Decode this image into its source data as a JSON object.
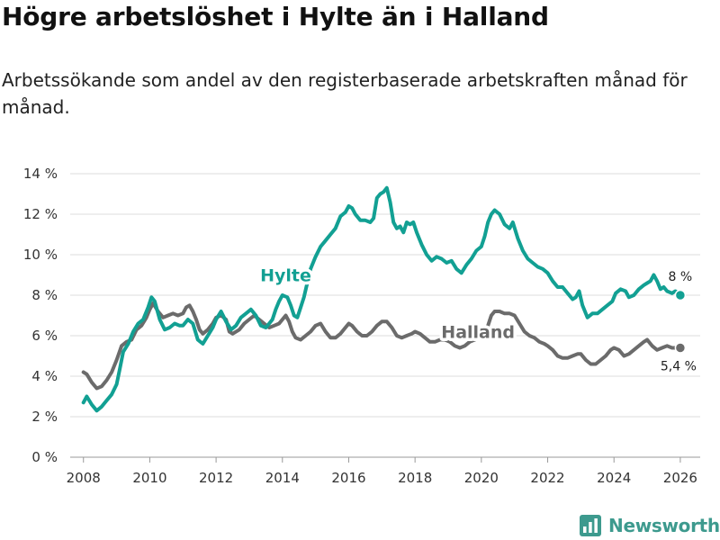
{
  "header": {
    "title": "Högre arbetslöshet i Hylte än i Halland",
    "subtitle": "Arbetssökande som andel av den registerbaserade arbetskraften månad för månad."
  },
  "brand": {
    "name": "Newsworthy"
  },
  "colors": {
    "hylte": "#12a093",
    "halland": "#6b6b6b",
    "grid": "#dddddd",
    "axis": "#999999",
    "brand": "#3d9a8e"
  },
  "chart_data": {
    "type": "line",
    "title": "Högre arbetslöshet i Hylte än i Halland",
    "subtitle": "Arbetssökande som andel av den registerbaserade arbetskraften månad för månad.",
    "xlabel": "",
    "ylabel": "",
    "xlim": [
      2007.6,
      2026.6
    ],
    "ylim": [
      0,
      14
    ],
    "xticks": [
      2008,
      2010,
      2012,
      2014,
      2016,
      2018,
      2020,
      2022,
      2024,
      2026
    ],
    "xtick_labels": [
      "2008",
      "2010",
      "2012",
      "2014",
      "2016",
      "2018",
      "2020",
      "2022",
      "2024",
      "2026"
    ],
    "yticks": [
      0,
      2,
      4,
      6,
      8,
      10,
      12,
      14
    ],
    "ytick_labels": [
      "0 %",
      "2 %",
      "4 %",
      "6 %",
      "8 %",
      "10 %",
      "12 %",
      "14 %"
    ],
    "grid": true,
    "series": [
      {
        "name": "Halland",
        "label": "Halland",
        "end_label": "5,4 %",
        "points": [
          [
            2008.0,
            4.2
          ],
          [
            2008.1,
            4.1
          ],
          [
            2008.25,
            3.7
          ],
          [
            2008.4,
            3.4
          ],
          [
            2008.55,
            3.5
          ],
          [
            2008.7,
            3.8
          ],
          [
            2008.85,
            4.2
          ],
          [
            2009.0,
            4.8
          ],
          [
            2009.15,
            5.5
          ],
          [
            2009.3,
            5.7
          ],
          [
            2009.45,
            5.8
          ],
          [
            2009.6,
            6.3
          ],
          [
            2009.75,
            6.5
          ],
          [
            2009.9,
            6.9
          ],
          [
            2010.0,
            7.3
          ],
          [
            2010.1,
            7.6
          ],
          [
            2010.25,
            7.2
          ],
          [
            2010.4,
            6.9
          ],
          [
            2010.55,
            7.0
          ],
          [
            2010.7,
            7.1
          ],
          [
            2010.85,
            7.0
          ],
          [
            2011.0,
            7.1
          ],
          [
            2011.1,
            7.4
          ],
          [
            2011.2,
            7.5
          ],
          [
            2011.3,
            7.2
          ],
          [
            2011.4,
            6.8
          ],
          [
            2011.5,
            6.3
          ],
          [
            2011.6,
            6.1
          ],
          [
            2011.75,
            6.3
          ],
          [
            2011.9,
            6.6
          ],
          [
            2012.0,
            6.9
          ],
          [
            2012.15,
            7.0
          ],
          [
            2012.3,
            6.8
          ],
          [
            2012.4,
            6.2
          ],
          [
            2012.5,
            6.1
          ],
          [
            2012.7,
            6.3
          ],
          [
            2012.85,
            6.6
          ],
          [
            2013.0,
            6.8
          ],
          [
            2013.15,
            7.0
          ],
          [
            2013.3,
            6.8
          ],
          [
            2013.45,
            6.6
          ],
          [
            2013.6,
            6.4
          ],
          [
            2013.75,
            6.5
          ],
          [
            2013.9,
            6.6
          ],
          [
            2014.0,
            6.8
          ],
          [
            2014.1,
            7.0
          ],
          [
            2014.2,
            6.7
          ],
          [
            2014.3,
            6.2
          ],
          [
            2014.4,
            5.9
          ],
          [
            2014.55,
            5.8
          ],
          [
            2014.7,
            6.0
          ],
          [
            2014.85,
            6.2
          ],
          [
            2015.0,
            6.5
          ],
          [
            2015.15,
            6.6
          ],
          [
            2015.3,
            6.2
          ],
          [
            2015.45,
            5.9
          ],
          [
            2015.6,
            5.9
          ],
          [
            2015.75,
            6.1
          ],
          [
            2015.9,
            6.4
          ],
          [
            2016.0,
            6.6
          ],
          [
            2016.1,
            6.5
          ],
          [
            2016.25,
            6.2
          ],
          [
            2016.4,
            6.0
          ],
          [
            2016.55,
            6.0
          ],
          [
            2016.7,
            6.2
          ],
          [
            2016.85,
            6.5
          ],
          [
            2017.0,
            6.7
          ],
          [
            2017.15,
            6.7
          ],
          [
            2017.3,
            6.4
          ],
          [
            2017.45,
            6.0
          ],
          [
            2017.6,
            5.9
          ],
          [
            2017.75,
            6.0
          ],
          [
            2017.9,
            6.1
          ],
          [
            2018.0,
            6.2
          ],
          [
            2018.15,
            6.1
          ],
          [
            2018.3,
            5.9
          ],
          [
            2018.45,
            5.7
          ],
          [
            2018.6,
            5.7
          ],
          [
            2018.75,
            5.8
          ],
          [
            2018.9,
            5.8
          ],
          [
            2019.05,
            5.7
          ],
          [
            2019.2,
            5.5
          ],
          [
            2019.35,
            5.4
          ],
          [
            2019.5,
            5.5
          ],
          [
            2019.65,
            5.7
          ],
          [
            2019.8,
            5.8
          ],
          [
            2019.95,
            5.9
          ],
          [
            2020.1,
            6.0
          ],
          [
            2020.2,
            6.5
          ],
          [
            2020.3,
            7.0
          ],
          [
            2020.4,
            7.2
          ],
          [
            2020.55,
            7.2
          ],
          [
            2020.7,
            7.1
          ],
          [
            2020.85,
            7.1
          ],
          [
            2021.0,
            7.0
          ],
          [
            2021.15,
            6.6
          ],
          [
            2021.3,
            6.2
          ],
          [
            2021.45,
            6.0
          ],
          [
            2021.6,
            5.9
          ],
          [
            2021.75,
            5.7
          ],
          [
            2021.9,
            5.6
          ],
          [
            2022.0,
            5.5
          ],
          [
            2022.15,
            5.3
          ],
          [
            2022.3,
            5.0
          ],
          [
            2022.45,
            4.9
          ],
          [
            2022.6,
            4.9
          ],
          [
            2022.75,
            5.0
          ],
          [
            2022.9,
            5.1
          ],
          [
            2023.0,
            5.1
          ],
          [
            2023.15,
            4.8
          ],
          [
            2023.3,
            4.6
          ],
          [
            2023.45,
            4.6
          ],
          [
            2023.6,
            4.8
          ],
          [
            2023.75,
            5.0
          ],
          [
            2023.9,
            5.3
          ],
          [
            2024.0,
            5.4
          ],
          [
            2024.15,
            5.3
          ],
          [
            2024.3,
            5.0
          ],
          [
            2024.45,
            5.1
          ],
          [
            2024.6,
            5.3
          ],
          [
            2024.75,
            5.5
          ],
          [
            2024.9,
            5.7
          ],
          [
            2025.0,
            5.8
          ],
          [
            2025.15,
            5.5
          ],
          [
            2025.3,
            5.3
          ],
          [
            2025.45,
            5.4
          ],
          [
            2025.6,
            5.5
          ],
          [
            2025.75,
            5.4
          ],
          [
            2025.9,
            5.4
          ],
          [
            2026.0,
            5.4
          ]
        ]
      },
      {
        "name": "Hylte",
        "label": "Hylte",
        "end_label": "8 %",
        "points": [
          [
            2008.0,
            2.7
          ],
          [
            2008.1,
            3.0
          ],
          [
            2008.25,
            2.6
          ],
          [
            2008.4,
            2.3
          ],
          [
            2008.55,
            2.5
          ],
          [
            2008.7,
            2.8
          ],
          [
            2008.85,
            3.1
          ],
          [
            2009.0,
            3.6
          ],
          [
            2009.1,
            4.4
          ],
          [
            2009.2,
            5.2
          ],
          [
            2009.35,
            5.6
          ],
          [
            2009.5,
            6.2
          ],
          [
            2009.65,
            6.6
          ],
          [
            2009.8,
            6.8
          ],
          [
            2009.95,
            7.4
          ],
          [
            2010.05,
            7.9
          ],
          [
            2010.15,
            7.7
          ],
          [
            2010.3,
            6.8
          ],
          [
            2010.45,
            6.3
          ],
          [
            2010.6,
            6.4
          ],
          [
            2010.75,
            6.6
          ],
          [
            2010.9,
            6.5
          ],
          [
            2011.0,
            6.5
          ],
          [
            2011.15,
            6.8
          ],
          [
            2011.3,
            6.6
          ],
          [
            2011.45,
            5.8
          ],
          [
            2011.6,
            5.6
          ],
          [
            2011.75,
            6.0
          ],
          [
            2011.9,
            6.4
          ],
          [
            2012.0,
            6.8
          ],
          [
            2012.15,
            7.2
          ],
          [
            2012.3,
            6.7
          ],
          [
            2012.45,
            6.3
          ],
          [
            2012.6,
            6.5
          ],
          [
            2012.75,
            6.9
          ],
          [
            2012.9,
            7.1
          ],
          [
            2013.05,
            7.3
          ],
          [
            2013.2,
            7.0
          ],
          [
            2013.35,
            6.5
          ],
          [
            2013.5,
            6.4
          ],
          [
            2013.6,
            6.6
          ],
          [
            2013.7,
            6.8
          ],
          [
            2013.8,
            7.3
          ],
          [
            2013.9,
            7.7
          ],
          [
            2014.0,
            8.0
          ],
          [
            2014.15,
            7.9
          ],
          [
            2014.25,
            7.5
          ],
          [
            2014.35,
            7.0
          ],
          [
            2014.45,
            6.9
          ],
          [
            2014.55,
            7.4
          ],
          [
            2014.65,
            7.9
          ],
          [
            2014.75,
            8.6
          ],
          [
            2014.85,
            9.3
          ],
          [
            2015.0,
            9.9
          ],
          [
            2015.15,
            10.4
          ],
          [
            2015.3,
            10.7
          ],
          [
            2015.45,
            11.0
          ],
          [
            2015.6,
            11.3
          ],
          [
            2015.75,
            11.9
          ],
          [
            2015.9,
            12.1
          ],
          [
            2016.0,
            12.4
          ],
          [
            2016.1,
            12.3
          ],
          [
            2016.2,
            12.0
          ],
          [
            2016.35,
            11.7
          ],
          [
            2016.5,
            11.7
          ],
          [
            2016.65,
            11.6
          ],
          [
            2016.75,
            11.8
          ],
          [
            2016.85,
            12.8
          ],
          [
            2016.95,
            13.0
          ],
          [
            2017.05,
            13.1
          ],
          [
            2017.15,
            13.3
          ],
          [
            2017.25,
            12.6
          ],
          [
            2017.35,
            11.6
          ],
          [
            2017.45,
            11.3
          ],
          [
            2017.55,
            11.4
          ],
          [
            2017.65,
            11.1
          ],
          [
            2017.75,
            11.6
          ],
          [
            2017.85,
            11.5
          ],
          [
            2017.95,
            11.6
          ],
          [
            2018.05,
            11.1
          ],
          [
            2018.2,
            10.5
          ],
          [
            2018.35,
            10.0
          ],
          [
            2018.5,
            9.7
          ],
          [
            2018.65,
            9.9
          ],
          [
            2018.8,
            9.8
          ],
          [
            2018.95,
            9.6
          ],
          [
            2019.1,
            9.7
          ],
          [
            2019.25,
            9.3
          ],
          [
            2019.4,
            9.1
          ],
          [
            2019.55,
            9.5
          ],
          [
            2019.7,
            9.8
          ],
          [
            2019.85,
            10.2
          ],
          [
            2020.0,
            10.4
          ],
          [
            2020.1,
            10.9
          ],
          [
            2020.2,
            11.6
          ],
          [
            2020.3,
            12.0
          ],
          [
            2020.4,
            12.2
          ],
          [
            2020.55,
            12.0
          ],
          [
            2020.7,
            11.5
          ],
          [
            2020.85,
            11.3
          ],
          [
            2020.95,
            11.6
          ],
          [
            2021.1,
            10.8
          ],
          [
            2021.25,
            10.2
          ],
          [
            2021.4,
            9.8
          ],
          [
            2021.55,
            9.6
          ],
          [
            2021.7,
            9.4
          ],
          [
            2021.85,
            9.3
          ],
          [
            2022.0,
            9.1
          ],
          [
            2022.15,
            8.7
          ],
          [
            2022.3,
            8.4
          ],
          [
            2022.45,
            8.4
          ],
          [
            2022.6,
            8.1
          ],
          [
            2022.75,
            7.8
          ],
          [
            2022.85,
            7.9
          ],
          [
            2022.95,
            8.2
          ],
          [
            2023.05,
            7.5
          ],
          [
            2023.2,
            6.9
          ],
          [
            2023.35,
            7.1
          ],
          [
            2023.5,
            7.1
          ],
          [
            2023.65,
            7.3
          ],
          [
            2023.8,
            7.5
          ],
          [
            2023.95,
            7.7
          ],
          [
            2024.05,
            8.1
          ],
          [
            2024.2,
            8.3
          ],
          [
            2024.35,
            8.2
          ],
          [
            2024.45,
            7.9
          ],
          [
            2024.6,
            8.0
          ],
          [
            2024.75,
            8.3
          ],
          [
            2024.9,
            8.5
          ],
          [
            2025.0,
            8.6
          ],
          [
            2025.1,
            8.7
          ],
          [
            2025.2,
            9.0
          ],
          [
            2025.3,
            8.7
          ],
          [
            2025.4,
            8.3
          ],
          [
            2025.5,
            8.4
          ],
          [
            2025.6,
            8.2
          ],
          [
            2025.75,
            8.1
          ],
          [
            2025.85,
            8.2
          ],
          [
            2025.95,
            8.1
          ],
          [
            2026.0,
            8.0
          ]
        ]
      }
    ],
    "annotations": [
      {
        "text": "Hylte",
        "series": "Hylte",
        "x": 2014.1,
        "y": 8.7
      },
      {
        "text": "Halland",
        "series": "Halland",
        "x": 2019.9,
        "y": 5.9
      }
    ]
  }
}
